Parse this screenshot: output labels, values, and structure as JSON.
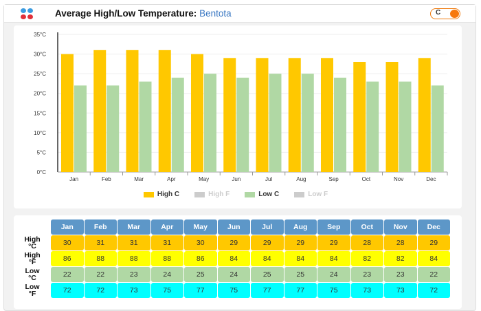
{
  "header": {
    "title": "Average High/Low Temperature:",
    "location": "Bentota",
    "unit_toggle": "C"
  },
  "colors": {
    "high_c": "#ffc800",
    "high_f": "#ffff00",
    "low_c": "#b0d8a4",
    "low_f": "#00ffff",
    "header": "#5d97c8",
    "disabled": "#cccccc"
  },
  "chart_data": {
    "type": "bar",
    "categories": [
      "Jan",
      "Feb",
      "Mar",
      "Apr",
      "May",
      "Jun",
      "Jul",
      "Aug",
      "Sep",
      "Oct",
      "Nov",
      "Dec"
    ],
    "series": [
      {
        "name": "High C",
        "values": [
          30,
          31,
          31,
          31,
          30,
          29,
          29,
          29,
          29,
          28,
          28,
          29
        ],
        "visible": true
      },
      {
        "name": "High F",
        "values": [
          86,
          88,
          88,
          88,
          86,
          84,
          84,
          84,
          84,
          82,
          82,
          84
        ],
        "visible": false
      },
      {
        "name": "Low C",
        "values": [
          22,
          22,
          23,
          24,
          25,
          24,
          25,
          25,
          24,
          23,
          23,
          22
        ],
        "visible": true
      },
      {
        "name": "Low F",
        "values": [
          72,
          72,
          73,
          75,
          77,
          75,
          77,
          77,
          75,
          73,
          73,
          72
        ],
        "visible": false
      }
    ],
    "yticks": [
      "0°C",
      "5°C",
      "10°C",
      "15°C",
      "20°C",
      "25°C",
      "30°C",
      "35°C"
    ],
    "ylim": [
      0,
      35
    ],
    "legend": "bottom"
  },
  "table": {
    "row_labels": [
      [
        "High",
        "°C"
      ],
      [
        "High",
        "°F"
      ],
      [
        "Low",
        "°C"
      ],
      [
        "Low",
        "°F"
      ]
    ]
  }
}
